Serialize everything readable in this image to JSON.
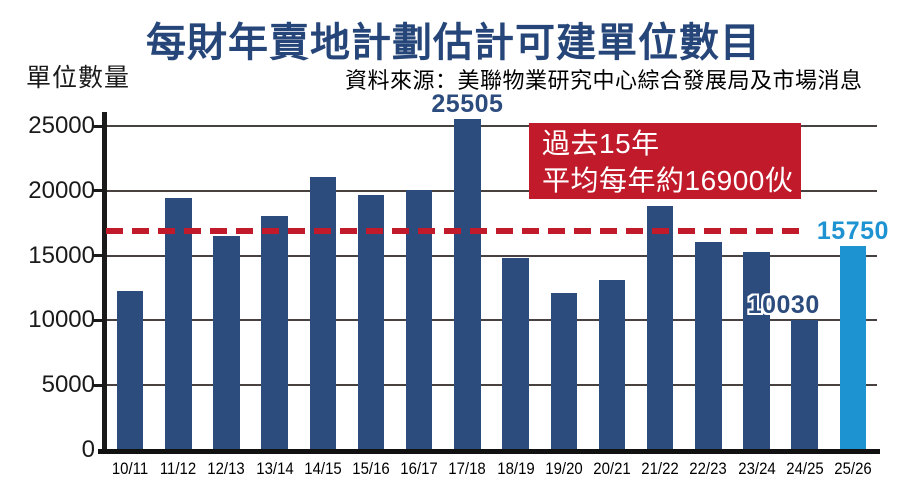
{
  "page": {
    "title": "每財年賣地計劃估計可建單位數目",
    "y_axis_label": "單位數量",
    "source": "資料來源：美聯物業研究中心綜合發展局及市場消息"
  },
  "annotation": {
    "line1": "過去15年",
    "line2": "平均每年約16900伙"
  },
  "colors": {
    "bar": "#2b4c7d",
    "highlight_bar": "#1e93d2",
    "red": "#c01a2b",
    "title_navy": "#264679",
    "grid": "#474240",
    "axis": "#1a1a1a"
  },
  "chart_data": {
    "type": "bar",
    "title": "每財年賣地計劃估計可建單位數目",
    "ylabel": "單位數量",
    "source": "資料來源：美聯物業研究中心綜合發展局及市場消息",
    "categories": [
      "10/11",
      "11/12",
      "12/13",
      "13/14",
      "14/15",
      "15/16",
      "16/17",
      "17/18",
      "18/19",
      "19/20",
      "20/21",
      "21/22",
      "22/23",
      "23/24",
      "24/25",
      "25/26"
    ],
    "values": [
      12250,
      19450,
      16550,
      18050,
      21100,
      19700,
      20100,
      25505,
      14800,
      12150,
      13100,
      18850,
      16050,
      15300,
      10030,
      15750
    ],
    "highlight_index": 15,
    "data_labels": [
      {
        "index": 7,
        "text": "25505",
        "color": "#2b4c7d"
      },
      {
        "index": 14,
        "text": "10030",
        "color": "#2b4c7d"
      },
      {
        "index": 15,
        "text": "15750",
        "color": "#1e93d2"
      }
    ],
    "average_line": {
      "value": 16900,
      "style": "dashed",
      "color": "#c01a2b",
      "label": "過去15年 平均每年約16900伙"
    },
    "ylim": [
      0,
      26000
    ],
    "yticks": [
      0,
      5000,
      10000,
      15000,
      20000,
      25000
    ],
    "grid": true,
    "legend": "none"
  }
}
